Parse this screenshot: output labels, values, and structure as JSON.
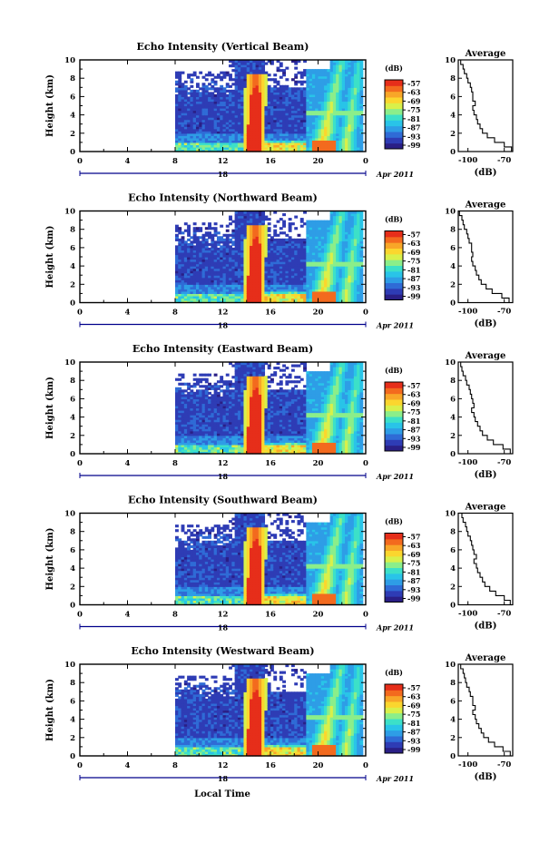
{
  "figure": {
    "xlabel_bottom": "Local Time",
    "date_label": "Apr 2011",
    "day_label": "18",
    "colorbar_label": "(dB)",
    "average_title": "Average",
    "average_xlabel": "(dB)"
  },
  "colorbar_ticks": [
    "-57",
    "-63",
    "-69",
    "-75",
    "-81",
    "-87",
    "-93",
    "-99"
  ],
  "colors": {
    "scale": [
      "#2a1f86",
      "#2e3cb5",
      "#2f6bd6",
      "#2e9de6",
      "#29c4e8",
      "#3ce0c8",
      "#8bee8a",
      "#d9f04a",
      "#fbd62e",
      "#f8a628",
      "#f36a1e",
      "#e62e1a"
    ]
  },
  "chart_data": [
    {
      "type": "heatmap",
      "title": "Echo Intensity (Vertical Beam)",
      "ylabel": "Height (km)",
      "xlim": [
        0,
        24
      ],
      "ylim": [
        0,
        10
      ],
      "xticks": [
        "0",
        "4",
        "8",
        "12",
        "16",
        "20",
        "0"
      ],
      "yticks": [
        "0",
        "2",
        "4",
        "6",
        "8",
        "10"
      ],
      "colorbar": {
        "label": "(dB)",
        "ticks": [
          -57,
          -63,
          -69,
          -75,
          -81,
          -87,
          -93,
          -99
        ]
      },
      "average_profile": {
        "title": "Average",
        "xlabel": "(dB)",
        "xticks": [
          "-100",
          "-70"
        ],
        "xlim": [
          -108,
          -63
        ],
        "ylim": [
          0,
          10
        ],
        "height_km": [
          0,
          0.5,
          1,
          1.5,
          2,
          2.5,
          3,
          3.5,
          4,
          4.5,
          5,
          5.5,
          6,
          6.5,
          7,
          7.5,
          8,
          8.5,
          9,
          9.5,
          10
        ],
        "db": [
          -64,
          -70,
          -78,
          -84,
          -88,
          -90,
          -92,
          -93,
          -95,
          -96,
          -94,
          -96,
          -96,
          -97,
          -98,
          -100,
          -101,
          -103,
          -104,
          -106,
          -107
        ]
      }
    },
    {
      "type": "heatmap",
      "title": "Echo Intensity (Northward Beam)",
      "ylabel": "Height (km)",
      "xlim": [
        0,
        24
      ],
      "ylim": [
        0,
        10
      ],
      "xticks": [
        "0",
        "4",
        "8",
        "12",
        "16",
        "20",
        "0"
      ],
      "yticks": [
        "0",
        "2",
        "4",
        "6",
        "8",
        "10"
      ],
      "colorbar": {
        "label": "(dB)",
        "ticks": [
          -57,
          -63,
          -69,
          -75,
          -81,
          -87,
          -93,
          -99
        ]
      },
      "average_profile": {
        "title": "Average",
        "xlabel": "(dB)",
        "xticks": [
          "-100",
          "-70"
        ],
        "xlim": [
          -108,
          -63
        ],
        "ylim": [
          0,
          10
        ],
        "height_km": [
          0,
          0.5,
          1,
          1.5,
          2,
          2.5,
          3,
          3.5,
          4,
          4.5,
          5,
          5.5,
          6,
          6.5,
          7,
          7.5,
          8,
          8.5,
          9,
          9.5,
          10
        ],
        "db": [
          -66,
          -72,
          -80,
          -85,
          -89,
          -91,
          -93,
          -94,
          -96,
          -97,
          -96,
          -97,
          -97,
          -99,
          -100,
          -101,
          -103,
          -104,
          -105,
          -107,
          -107
        ]
      }
    },
    {
      "type": "heatmap",
      "title": "Echo Intensity (Eastward Beam)",
      "ylabel": "Height (km)",
      "xlim": [
        0,
        24
      ],
      "ylim": [
        0,
        10
      ],
      "xticks": [
        "0",
        "4",
        "8",
        "12",
        "16",
        "20",
        "0"
      ],
      "yticks": [
        "0",
        "2",
        "4",
        "6",
        "8",
        "10"
      ],
      "colorbar": {
        "label": "(dB)",
        "ticks": [
          -57,
          -63,
          -69,
          -75,
          -81,
          -87,
          -93,
          -99
        ]
      },
      "average_profile": {
        "title": "Average",
        "xlabel": "(dB)",
        "xticks": [
          "-100",
          "-70"
        ],
        "xlim": [
          -108,
          -63
        ],
        "ylim": [
          0,
          10
        ],
        "height_km": [
          0,
          0.5,
          1,
          1.5,
          2,
          2.5,
          3,
          3.5,
          4,
          4.5,
          5,
          5.5,
          6,
          6.5,
          7,
          7.5,
          8,
          8.5,
          9,
          9.5,
          10
        ],
        "db": [
          -65,
          -71,
          -79,
          -84,
          -88,
          -90,
          -92,
          -94,
          -95,
          -97,
          -95,
          -96,
          -97,
          -98,
          -99,
          -101,
          -102,
          -104,
          -105,
          -106,
          -107
        ]
      }
    },
    {
      "type": "heatmap",
      "title": "Echo Intensity (Southward Beam)",
      "ylabel": "Height (km)",
      "xlim": [
        0,
        24
      ],
      "ylim": [
        0,
        10
      ],
      "xticks": [
        "0",
        "4",
        "8",
        "12",
        "16",
        "20",
        "0"
      ],
      "yticks": [
        "0",
        "2",
        "4",
        "6",
        "8",
        "10"
      ],
      "colorbar": {
        "label": "(dB)",
        "ticks": [
          -57,
          -63,
          -69,
          -75,
          -81,
          -87,
          -93,
          -99
        ]
      },
      "average_profile": {
        "title": "Average",
        "xlabel": "(dB)",
        "xticks": [
          "-100",
          "-70"
        ],
        "xlim": [
          -108,
          -63
        ],
        "ylim": [
          0,
          10
        ],
        "height_km": [
          0,
          0.5,
          1,
          1.5,
          2,
          2.5,
          3,
          3.5,
          4,
          4.5,
          5,
          5.5,
          6,
          6.5,
          7,
          7.5,
          8,
          8.5,
          9,
          9.5,
          10
        ],
        "db": [
          -65,
          -70,
          -77,
          -82,
          -86,
          -88,
          -90,
          -92,
          -93,
          -95,
          -93,
          -95,
          -96,
          -97,
          -98,
          -100,
          -101,
          -102,
          -104,
          -105,
          -106
        ]
      }
    },
    {
      "type": "heatmap",
      "title": "Echo Intensity (Westward Beam)",
      "ylabel": "Height (km)",
      "xlim": [
        0,
        24
      ],
      "ylim": [
        0,
        10
      ],
      "xticks": [
        "0",
        "4",
        "8",
        "12",
        "16",
        "20",
        "0"
      ],
      "yticks": [
        "0",
        "2",
        "4",
        "6",
        "8",
        "10"
      ],
      "colorbar": {
        "label": "(dB)",
        "ticks": [
          -57,
          -63,
          -69,
          -75,
          -81,
          -87,
          -93,
          -99
        ]
      },
      "average_profile": {
        "title": "Average",
        "xlabel": "(dB)",
        "xticks": [
          "-100",
          "-70"
        ],
        "xlim": [
          -108,
          -63
        ],
        "ylim": [
          0,
          10
        ],
        "height_km": [
          0,
          0.5,
          1,
          1.5,
          2,
          2.5,
          3,
          3.5,
          4,
          4.5,
          5,
          5.5,
          6,
          6.5,
          7,
          7.5,
          8,
          8.5,
          9,
          9.5,
          10
        ],
        "db": [
          -65,
          -71,
          -78,
          -83,
          -87,
          -89,
          -91,
          -93,
          -94,
          -96,
          -94,
          -96,
          -96,
          -98,
          -99,
          -101,
          -102,
          -103,
          -104,
          -106,
          -107
        ]
      }
    }
  ]
}
